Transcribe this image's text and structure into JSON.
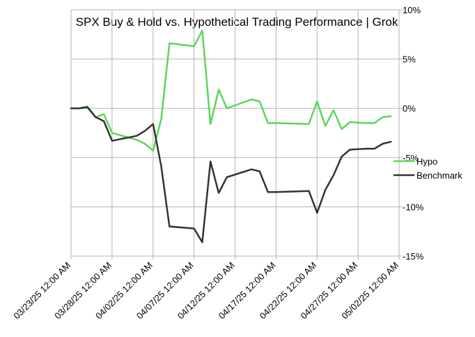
{
  "chart_data": {
    "type": "line",
    "title": "SPX Buy & Hold vs. Hypothetical Trading Performance | Grok",
    "xlabel": "",
    "ylabel": "",
    "x_tick_labels": [
      "03/23/25 12:00 AM",
      "03/28/25 12:00 AM",
      "04/02/25 12:00 AM",
      "04/07/25 12:00 AM",
      "04/12/25 12:00 AM",
      "04/17/25 12:00 AM",
      "04/22/25 12:00 AM",
      "04/27/25 12:00 AM",
      "05/02/25 12:00 AM"
    ],
    "xlim_days": [
      0,
      40
    ],
    "y_tick_labels": [
      "10%",
      "5%",
      "0%",
      "-5%",
      "-10%",
      "-15%"
    ],
    "y_ticks": [
      10,
      5,
      0,
      -5,
      -10,
      -15
    ],
    "ylim": [
      -15,
      10
    ],
    "grid": true,
    "legend_position": "right",
    "series": [
      {
        "name": "Hypo",
        "color": "#5cd65c",
        "x": [
          0,
          1,
          2,
          3,
          4,
          5,
          8,
          9,
          10,
          11,
          12,
          15,
          16,
          17,
          18,
          19,
          22,
          23,
          24,
          25,
          29,
          30,
          31,
          32,
          33,
          34,
          36,
          37,
          38,
          39
        ],
        "y": [
          0,
          0,
          0.2,
          -0.9,
          -0.6,
          -2.5,
          -3.2,
          -3.6,
          -4.3,
          -1.1,
          6.6,
          6.3,
          7.9,
          -1.6,
          1.9,
          0,
          0.9,
          0.7,
          -1.5,
          -1.5,
          -1.6,
          0.7,
          -1.8,
          -0.2,
          -2.1,
          -1.4,
          -1.5,
          -1.5,
          -0.9,
          -0.8
        ]
      },
      {
        "name": "Benchmark",
        "color": "#333333",
        "x": [
          0,
          1,
          2,
          3,
          4,
          5,
          8,
          9,
          10,
          11,
          12,
          15,
          16,
          17,
          18,
          19,
          22,
          23,
          24,
          25,
          29,
          30,
          31,
          32,
          33,
          34,
          36,
          37,
          38,
          39
        ],
        "y": [
          0,
          0,
          0.1,
          -0.9,
          -1.3,
          -3.3,
          -2.8,
          -2.3,
          -1.6,
          -5.9,
          -12,
          -12.2,
          -13.6,
          -5.4,
          -8.6,
          -7,
          -6.2,
          -6.4,
          -8.5,
          -8.5,
          -8.4,
          -10.6,
          -8.3,
          -6.8,
          -4.9,
          -4.2,
          -4.1,
          -4.1,
          -3.6,
          -3.4
        ]
      }
    ]
  }
}
